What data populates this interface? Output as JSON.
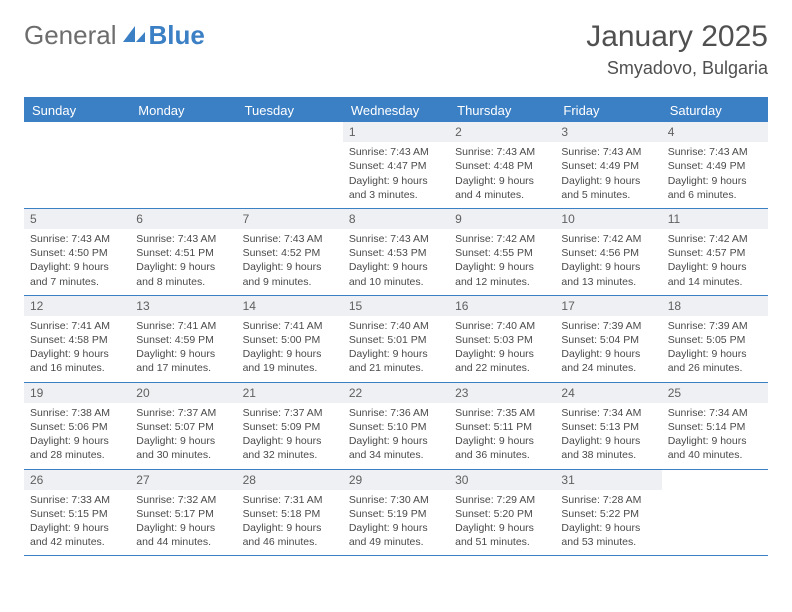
{
  "logo": {
    "part1": "General",
    "part2": "Blue"
  },
  "title": "January 2025",
  "location": "Smyadovo, Bulgaria",
  "colors": {
    "accent": "#3b7fc4",
    "header_bg": "#3b7fc4",
    "header_text": "#ffffff",
    "daynum_bg": "#eef0f3",
    "text": "#4a4a4a",
    "title_text": "#505050",
    "logo_gray": "#6d6d6d"
  },
  "day_headers": [
    "Sunday",
    "Monday",
    "Tuesday",
    "Wednesday",
    "Thursday",
    "Friday",
    "Saturday"
  ],
  "weeks": [
    [
      {
        "empty": true
      },
      {
        "empty": true
      },
      {
        "empty": true
      },
      {
        "num": "1",
        "sunrise": "7:43 AM",
        "sunset": "4:47 PM",
        "daylight": "9 hours and 3 minutes."
      },
      {
        "num": "2",
        "sunrise": "7:43 AM",
        "sunset": "4:48 PM",
        "daylight": "9 hours and 4 minutes."
      },
      {
        "num": "3",
        "sunrise": "7:43 AM",
        "sunset": "4:49 PM",
        "daylight": "9 hours and 5 minutes."
      },
      {
        "num": "4",
        "sunrise": "7:43 AM",
        "sunset": "4:49 PM",
        "daylight": "9 hours and 6 minutes."
      }
    ],
    [
      {
        "num": "5",
        "sunrise": "7:43 AM",
        "sunset": "4:50 PM",
        "daylight": "9 hours and 7 minutes."
      },
      {
        "num": "6",
        "sunrise": "7:43 AM",
        "sunset": "4:51 PM",
        "daylight": "9 hours and 8 minutes."
      },
      {
        "num": "7",
        "sunrise": "7:43 AM",
        "sunset": "4:52 PM",
        "daylight": "9 hours and 9 minutes."
      },
      {
        "num": "8",
        "sunrise": "7:43 AM",
        "sunset": "4:53 PM",
        "daylight": "9 hours and 10 minutes."
      },
      {
        "num": "9",
        "sunrise": "7:42 AM",
        "sunset": "4:55 PM",
        "daylight": "9 hours and 12 minutes."
      },
      {
        "num": "10",
        "sunrise": "7:42 AM",
        "sunset": "4:56 PM",
        "daylight": "9 hours and 13 minutes."
      },
      {
        "num": "11",
        "sunrise": "7:42 AM",
        "sunset": "4:57 PM",
        "daylight": "9 hours and 14 minutes."
      }
    ],
    [
      {
        "num": "12",
        "sunrise": "7:41 AM",
        "sunset": "4:58 PM",
        "daylight": "9 hours and 16 minutes."
      },
      {
        "num": "13",
        "sunrise": "7:41 AM",
        "sunset": "4:59 PM",
        "daylight": "9 hours and 17 minutes."
      },
      {
        "num": "14",
        "sunrise": "7:41 AM",
        "sunset": "5:00 PM",
        "daylight": "9 hours and 19 minutes."
      },
      {
        "num": "15",
        "sunrise": "7:40 AM",
        "sunset": "5:01 PM",
        "daylight": "9 hours and 21 minutes."
      },
      {
        "num": "16",
        "sunrise": "7:40 AM",
        "sunset": "5:03 PM",
        "daylight": "9 hours and 22 minutes."
      },
      {
        "num": "17",
        "sunrise": "7:39 AM",
        "sunset": "5:04 PM",
        "daylight": "9 hours and 24 minutes."
      },
      {
        "num": "18",
        "sunrise": "7:39 AM",
        "sunset": "5:05 PM",
        "daylight": "9 hours and 26 minutes."
      }
    ],
    [
      {
        "num": "19",
        "sunrise": "7:38 AM",
        "sunset": "5:06 PM",
        "daylight": "9 hours and 28 minutes."
      },
      {
        "num": "20",
        "sunrise": "7:37 AM",
        "sunset": "5:07 PM",
        "daylight": "9 hours and 30 minutes."
      },
      {
        "num": "21",
        "sunrise": "7:37 AM",
        "sunset": "5:09 PM",
        "daylight": "9 hours and 32 minutes."
      },
      {
        "num": "22",
        "sunrise": "7:36 AM",
        "sunset": "5:10 PM",
        "daylight": "9 hours and 34 minutes."
      },
      {
        "num": "23",
        "sunrise": "7:35 AM",
        "sunset": "5:11 PM",
        "daylight": "9 hours and 36 minutes."
      },
      {
        "num": "24",
        "sunrise": "7:34 AM",
        "sunset": "5:13 PM",
        "daylight": "9 hours and 38 minutes."
      },
      {
        "num": "25",
        "sunrise": "7:34 AM",
        "sunset": "5:14 PM",
        "daylight": "9 hours and 40 minutes."
      }
    ],
    [
      {
        "num": "26",
        "sunrise": "7:33 AM",
        "sunset": "5:15 PM",
        "daylight": "9 hours and 42 minutes."
      },
      {
        "num": "27",
        "sunrise": "7:32 AM",
        "sunset": "5:17 PM",
        "daylight": "9 hours and 44 minutes."
      },
      {
        "num": "28",
        "sunrise": "7:31 AM",
        "sunset": "5:18 PM",
        "daylight": "9 hours and 46 minutes."
      },
      {
        "num": "29",
        "sunrise": "7:30 AM",
        "sunset": "5:19 PM",
        "daylight": "9 hours and 49 minutes."
      },
      {
        "num": "30",
        "sunrise": "7:29 AM",
        "sunset": "5:20 PM",
        "daylight": "9 hours and 51 minutes."
      },
      {
        "num": "31",
        "sunrise": "7:28 AM",
        "sunset": "5:22 PM",
        "daylight": "9 hours and 53 minutes."
      },
      {
        "empty": true
      }
    ]
  ],
  "labels": {
    "sunrise": "Sunrise:",
    "sunset": "Sunset:",
    "daylight": "Daylight:"
  }
}
